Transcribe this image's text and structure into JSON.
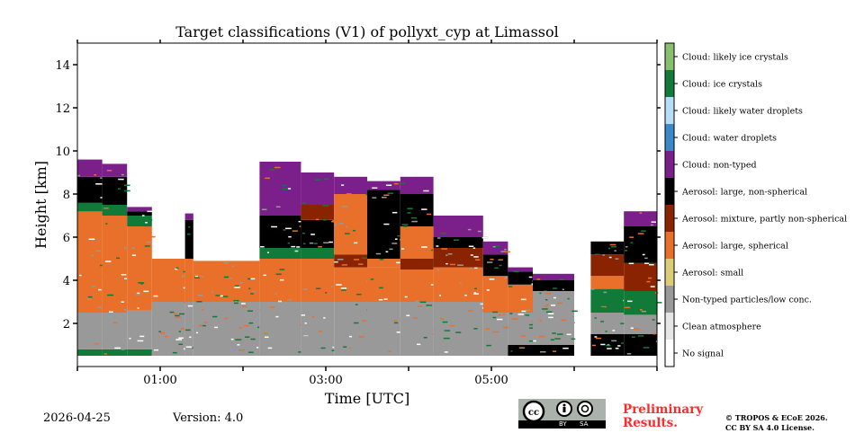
{
  "footer": {
    "date": "2026-04-25",
    "version": "Version: 4.0",
    "preliminary_line1": "Preliminary",
    "preliminary_line2": "Results.",
    "copyright": "© TROPOS & ECoE 2026.",
    "license": "CC BY SA 4.0 License.",
    "cc_badge": {
      "cc": "cc",
      "by": "BY",
      "sa": "SA"
    }
  },
  "chart_data": {
    "type": "heatmap",
    "title": "Target classifications (V1) of pollyxt_cyp at Limassol",
    "xlabel": "Time [UTC]",
    "ylabel": "Height [km]",
    "xlim_hours": [
      0,
      7
    ],
    "ylim_km": [
      0,
      15
    ],
    "xticks": [
      {
        "v": 1,
        "label": "01:00"
      },
      {
        "v": 3,
        "label": "03:00"
      },
      {
        "v": 5,
        "label": "05:00"
      }
    ],
    "xticks_minor": [
      0,
      2,
      4,
      6,
      7
    ],
    "yticks": [
      {
        "v": 2,
        "label": "2"
      },
      {
        "v": 4,
        "label": "4"
      },
      {
        "v": 6,
        "label": "6"
      },
      {
        "v": 8,
        "label": "8"
      },
      {
        "v": 10,
        "label": "10"
      },
      {
        "v": 12,
        "label": "12"
      },
      {
        "v": 14,
        "label": "14"
      }
    ],
    "classes": [
      {
        "label": "No signal",
        "color": "#ffffff"
      },
      {
        "label": "Clean atmosphere",
        "color": "#e6e6e6"
      },
      {
        "label": "Non-typed particles/low conc.",
        "color": "#999999"
      },
      {
        "label": "Aerosol: small",
        "color": "#dccc78"
      },
      {
        "label": "Aerosol: large, spherical",
        "color": "#e8702a"
      },
      {
        "label": "Aerosol: mixture, partly non-spherical",
        "color": "#8a2300"
      },
      {
        "label": "Aerosol: large, non-spherical",
        "color": "#000000"
      },
      {
        "label": "Cloud: non-typed",
        "color": "#7b1f8a"
      },
      {
        "label": "Cloud: water droplets",
        "color": "#3a88c8"
      },
      {
        "label": "Cloud: likely water droplets",
        "color": "#b5def5"
      },
      {
        "label": "Cloud: ice crystals",
        "color": "#127a38"
      },
      {
        "label": "Cloud: likely ice crystals",
        "color": "#88c070"
      }
    ],
    "segments": [
      {
        "t": [
          0.0,
          0.3
        ],
        "layers": [
          [
            10,
            0.5,
            0.8
          ],
          [
            2,
            0.8,
            2.5
          ],
          [
            4,
            2.5,
            7.6
          ],
          [
            10,
            7.2,
            7.8
          ],
          [
            6,
            7.6,
            8.8
          ],
          [
            7,
            8.8,
            9.6
          ]
        ]
      },
      {
        "t": [
          0.3,
          0.6
        ],
        "layers": [
          [
            10,
            0.5,
            0.8
          ],
          [
            2,
            0.8,
            2.5
          ],
          [
            4,
            2.5,
            7.0
          ],
          [
            10,
            7.0,
            7.5
          ],
          [
            6,
            7.5,
            8.8
          ],
          [
            7,
            8.8,
            9.4
          ]
        ]
      },
      {
        "t": [
          0.6,
          0.9
        ],
        "layers": [
          [
            10,
            0.5,
            0.8
          ],
          [
            2,
            0.8,
            2.6
          ],
          [
            4,
            2.6,
            6.5
          ],
          [
            10,
            6.5,
            7.0
          ],
          [
            6,
            7.0,
            7.2
          ],
          [
            7,
            7.2,
            7.4
          ]
        ]
      },
      {
        "t": [
          0.9,
          1.3
        ],
        "layers": [
          [
            2,
            0.5,
            3.0
          ],
          [
            4,
            3.0,
            5.0
          ]
        ]
      },
      {
        "t": [
          1.3,
          1.4
        ],
        "layers": [
          [
            2,
            0.5,
            3.0
          ],
          [
            4,
            3.0,
            5.0
          ],
          [
            6,
            5.0,
            6.8
          ],
          [
            7,
            6.8,
            7.1
          ]
        ]
      },
      {
        "t": [
          1.4,
          2.2
        ],
        "layers": [
          [
            2,
            0.5,
            3.0
          ],
          [
            4,
            3.0,
            4.9
          ]
        ]
      },
      {
        "t": [
          2.2,
          2.7
        ],
        "layers": [
          [
            2,
            0.5,
            3.0
          ],
          [
            4,
            3.0,
            5.0
          ],
          [
            10,
            5.0,
            5.5
          ],
          [
            6,
            5.5,
            7.0
          ],
          [
            7,
            7.0,
            9.5
          ]
        ]
      },
      {
        "t": [
          2.7,
          3.1
        ],
        "layers": [
          [
            2,
            0.5,
            3.0
          ],
          [
            4,
            3.0,
            5.0
          ],
          [
            10,
            5.0,
            5.5
          ],
          [
            6,
            5.5,
            6.8
          ],
          [
            5,
            6.8,
            7.5
          ],
          [
            7,
            7.5,
            9.0
          ]
        ]
      },
      {
        "t": [
          3.1,
          3.5
        ],
        "layers": [
          [
            2,
            0.5,
            3.0
          ],
          [
            4,
            3.0,
            4.6
          ],
          [
            5,
            4.6,
            5.2
          ],
          [
            4,
            5.2,
            8.0
          ],
          [
            7,
            8.0,
            8.8
          ]
        ]
      },
      {
        "t": [
          3.5,
          3.9
        ],
        "layers": [
          [
            2,
            0.5,
            3.0
          ],
          [
            4,
            3.0,
            4.6
          ],
          [
            4,
            4.6,
            5.0
          ],
          [
            6,
            5.0,
            8.2
          ],
          [
            7,
            8.2,
            8.6
          ]
        ]
      },
      {
        "t": [
          3.9,
          4.3
        ],
        "layers": [
          [
            2,
            0.5,
            3.0
          ],
          [
            4,
            3.0,
            4.5
          ],
          [
            5,
            4.5,
            5.0
          ],
          [
            4,
            5.0,
            6.5
          ],
          [
            6,
            6.5,
            8.0
          ],
          [
            7,
            8.0,
            8.8
          ]
        ]
      },
      {
        "t": [
          4.3,
          4.9
        ],
        "layers": [
          [
            2,
            0.5,
            3.0
          ],
          [
            4,
            3.0,
            4.6
          ],
          [
            5,
            4.6,
            5.5
          ],
          [
            6,
            5.5,
            6.0
          ],
          [
            7,
            6.0,
            7.0
          ]
        ]
      },
      {
        "t": [
          4.9,
          5.2
        ],
        "layers": [
          [
            2,
            0.5,
            2.5
          ],
          [
            4,
            2.5,
            4.2
          ],
          [
            6,
            4.2,
            5.2
          ],
          [
            7,
            5.2,
            5.8
          ]
        ]
      },
      {
        "t": [
          5.2,
          5.5
        ],
        "layers": [
          [
            6,
            0.5,
            1.0
          ],
          [
            2,
            1.0,
            2.5
          ],
          [
            4,
            2.5,
            3.8
          ],
          [
            6,
            3.8,
            4.4
          ],
          [
            7,
            4.4,
            4.6
          ]
        ]
      },
      {
        "t": [
          5.5,
          6.0
        ],
        "layers": [
          [
            6,
            0.5,
            1.0
          ],
          [
            2,
            1.0,
            2.5
          ],
          [
            2,
            2.5,
            3.5
          ],
          [
            6,
            3.5,
            4.0
          ],
          [
            7,
            4.0,
            4.3
          ]
        ]
      },
      {
        "t": [
          6.2,
          6.6
        ],
        "layers": [
          [
            6,
            0.5,
            1.5
          ],
          [
            2,
            1.5,
            2.5
          ],
          [
            10,
            2.5,
            3.6
          ],
          [
            4,
            3.6,
            4.2
          ],
          [
            5,
            4.2,
            5.2
          ],
          [
            6,
            5.2,
            5.8
          ]
        ]
      },
      {
        "t": [
          6.6,
          7.0
        ],
        "layers": [
          [
            6,
            0.5,
            1.5
          ],
          [
            2,
            1.5,
            2.4
          ],
          [
            10,
            2.4,
            3.5
          ],
          [
            5,
            3.5,
            4.8
          ],
          [
            6,
            4.8,
            6.5
          ],
          [
            7,
            6.5,
            7.2
          ]
        ]
      }
    ]
  }
}
